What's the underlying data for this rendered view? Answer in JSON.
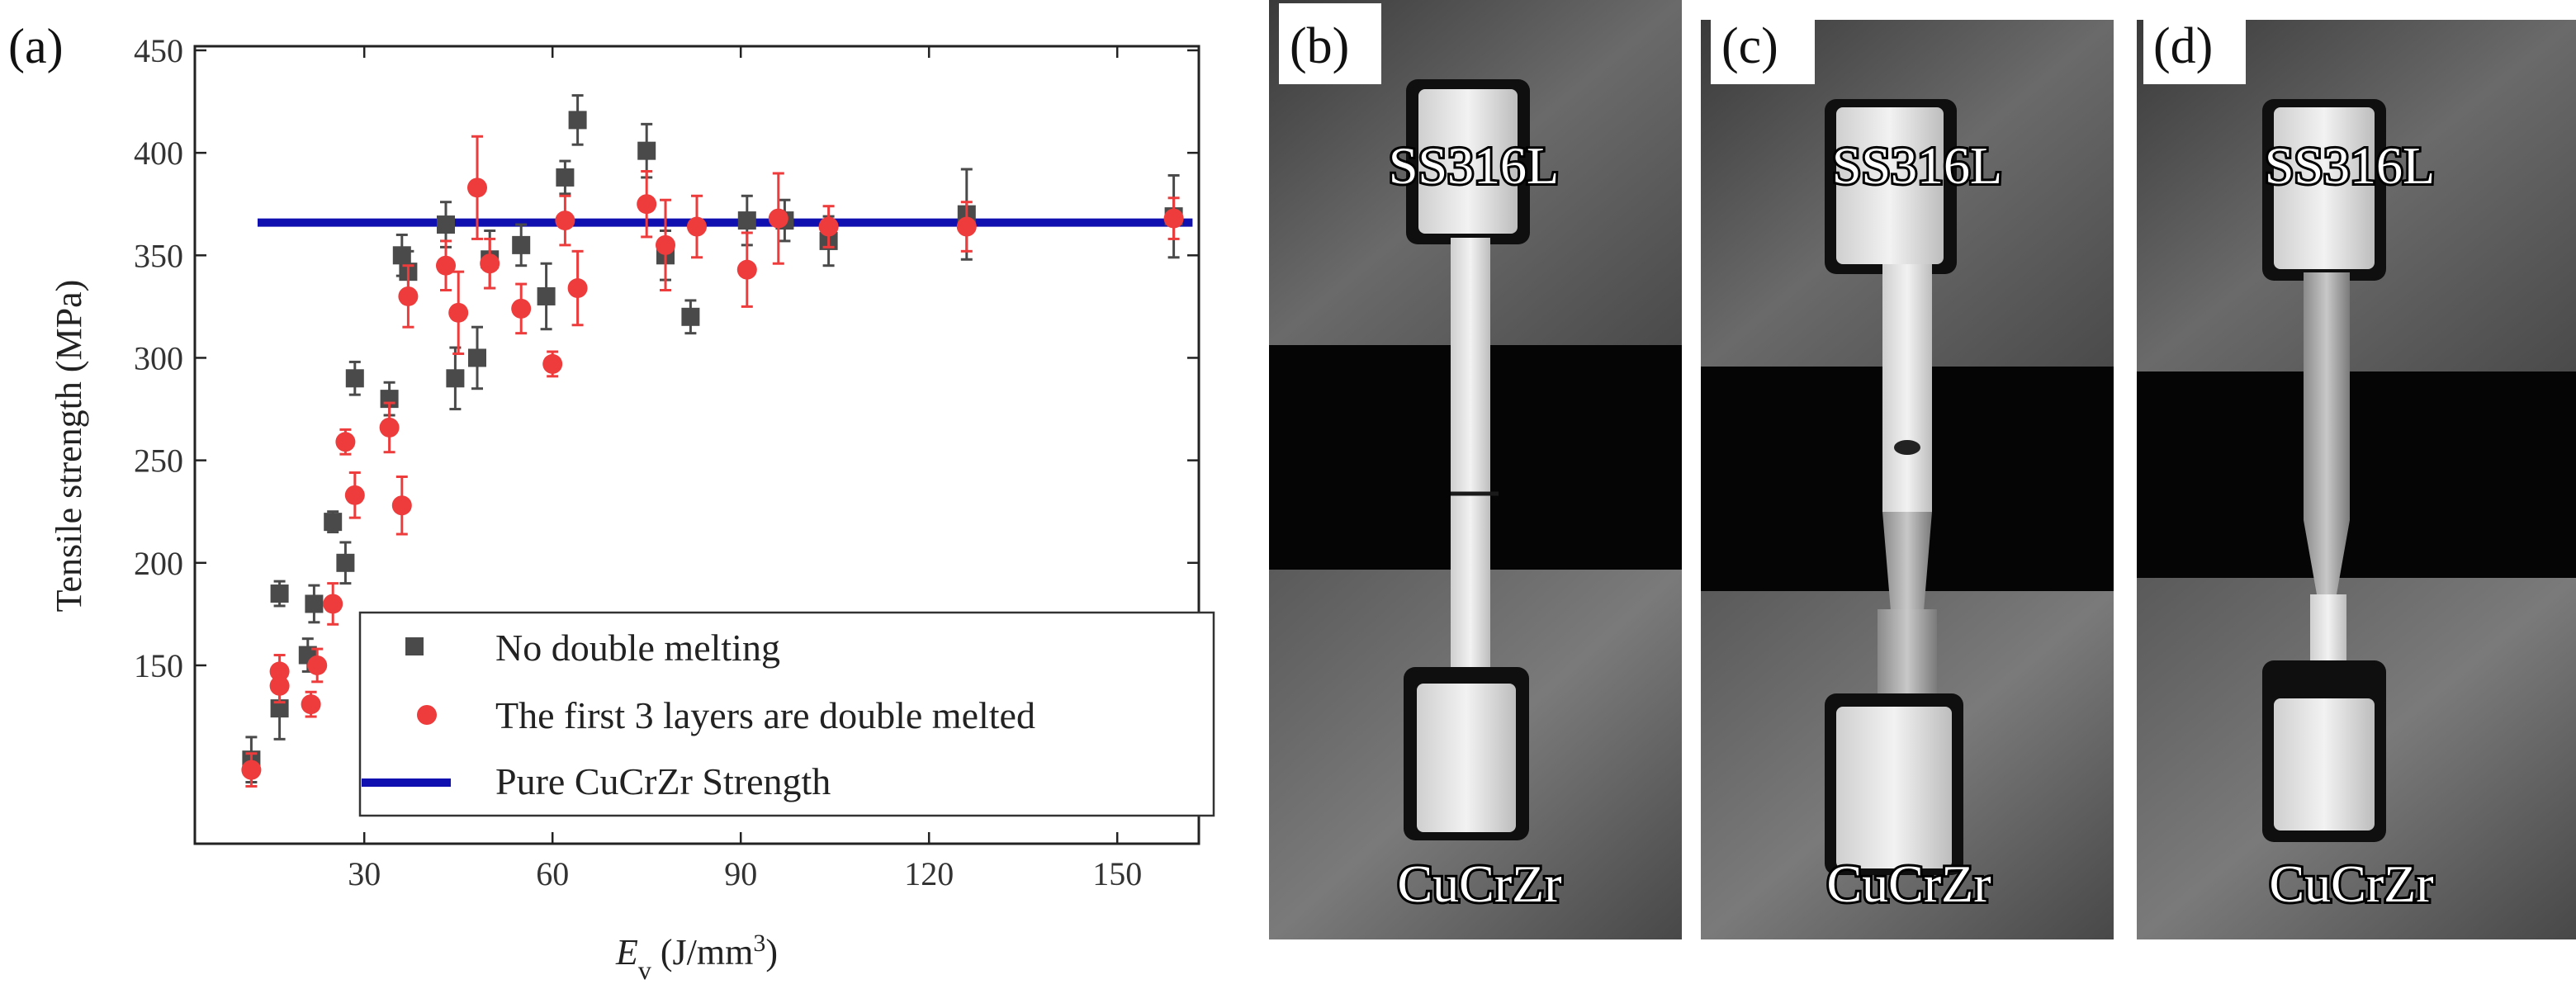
{
  "panels": {
    "a": "(a)",
    "b": "(b)",
    "c": "(c)",
    "d": "(d)"
  },
  "chart_data": {
    "type": "scatter",
    "xlabel_symbol": "E",
    "xlabel_subscript": "v",
    "xlabel_units": " (J/mm",
    "xlabel_exp": "3",
    "xlabel_close": ")",
    "ylabel": "Tensile strength (MPa)",
    "xlim": [
      3,
      163
    ],
    "ylim": [
      63,
      452
    ],
    "xticks": [
      30,
      60,
      90,
      120,
      150
    ],
    "yticks": [
      150,
      200,
      250,
      300,
      350,
      400,
      450
    ],
    "colors": {
      "series1": "#4a4a4a",
      "series2": "#ee3b3b",
      "reference": "#1010b0"
    },
    "series": [
      {
        "name": "No double melting",
        "marker": "square",
        "points": [
          {
            "x": 12,
            "y": 104,
            "err": 11
          },
          {
            "x": 16.5,
            "y": 185,
            "err": 6
          },
          {
            "x": 16.5,
            "y": 129,
            "err": 15
          },
          {
            "x": 21,
            "y": 155,
            "err": 8
          },
          {
            "x": 22,
            "y": 180,
            "err": 9
          },
          {
            "x": 25,
            "y": 220,
            "err": 5
          },
          {
            "x": 27,
            "y": 200,
            "err": 10
          },
          {
            "x": 28.5,
            "y": 290,
            "err": 8
          },
          {
            "x": 34,
            "y": 280,
            "err": 8
          },
          {
            "x": 36,
            "y": 350,
            "err": 10
          },
          {
            "x": 37,
            "y": 342,
            "err": 10
          },
          {
            "x": 43,
            "y": 365,
            "err": 11
          },
          {
            "x": 44.5,
            "y": 290,
            "err": 15
          },
          {
            "x": 48,
            "y": 300,
            "err": 15
          },
          {
            "x": 50,
            "y": 348,
            "err": 14
          },
          {
            "x": 55,
            "y": 355,
            "err": 10
          },
          {
            "x": 59,
            "y": 330,
            "err": 16
          },
          {
            "x": 62,
            "y": 388,
            "err": 8
          },
          {
            "x": 64,
            "y": 416,
            "err": 12
          },
          {
            "x": 75,
            "y": 401,
            "err": 13
          },
          {
            "x": 78,
            "y": 350,
            "err": 12
          },
          {
            "x": 82,
            "y": 320,
            "err": 8
          },
          {
            "x": 91,
            "y": 367,
            "err": 12
          },
          {
            "x": 97,
            "y": 367,
            "err": 10
          },
          {
            "x": 104,
            "y": 357,
            "err": 12
          },
          {
            "x": 126,
            "y": 370,
            "err": 22
          },
          {
            "x": 159,
            "y": 369,
            "err": 20
          }
        ]
      },
      {
        "name": "The first 3 layers are double melted",
        "marker": "circle",
        "points": [
          {
            "x": 12,
            "y": 99,
            "err": 8
          },
          {
            "x": 16.5,
            "y": 147,
            "err": 8
          },
          {
            "x": 16.5,
            "y": 140,
            "err": 8
          },
          {
            "x": 21.5,
            "y": 131,
            "err": 6
          },
          {
            "x": 22.5,
            "y": 150,
            "err": 8
          },
          {
            "x": 25,
            "y": 180,
            "err": 10
          },
          {
            "x": 27,
            "y": 259,
            "err": 6
          },
          {
            "x": 28.5,
            "y": 233,
            "err": 11
          },
          {
            "x": 34,
            "y": 266,
            "err": 12
          },
          {
            "x": 36,
            "y": 228,
            "err": 14
          },
          {
            "x": 37,
            "y": 330,
            "err": 15
          },
          {
            "x": 43,
            "y": 345,
            "err": 12
          },
          {
            "x": 45,
            "y": 322,
            "err": 20
          },
          {
            "x": 48,
            "y": 383,
            "err": 25
          },
          {
            "x": 50,
            "y": 346,
            "err": 12
          },
          {
            "x": 55,
            "y": 324,
            "err": 12
          },
          {
            "x": 60,
            "y": 297,
            "err": 6
          },
          {
            "x": 62,
            "y": 367,
            "err": 12
          },
          {
            "x": 64,
            "y": 334,
            "err": 18
          },
          {
            "x": 75,
            "y": 375,
            "err": 16
          },
          {
            "x": 78,
            "y": 355,
            "err": 22
          },
          {
            "x": 83,
            "y": 364,
            "err": 15
          },
          {
            "x": 91,
            "y": 343,
            "err": 18
          },
          {
            "x": 96,
            "y": 368,
            "err": 22
          },
          {
            "x": 104,
            "y": 364,
            "err": 10
          },
          {
            "x": 126,
            "y": 364,
            "err": 12
          },
          {
            "x": 159,
            "y": 368,
            "err": 10
          }
        ]
      }
    ],
    "reference_line": {
      "name": "Pure CuCrZr Strength",
      "y": 366,
      "x_start": 13,
      "x_end": 162
    }
  },
  "photos": [
    {
      "panel": "(b)",
      "top_label": "SS316L",
      "bottom_label": "CuCrZr"
    },
    {
      "panel": "(c)",
      "top_label": "SS316L",
      "bottom_label": "CuCrZr"
    },
    {
      "panel": "(d)",
      "top_label": "SS316L",
      "bottom_label": "CuCrZr"
    }
  ]
}
